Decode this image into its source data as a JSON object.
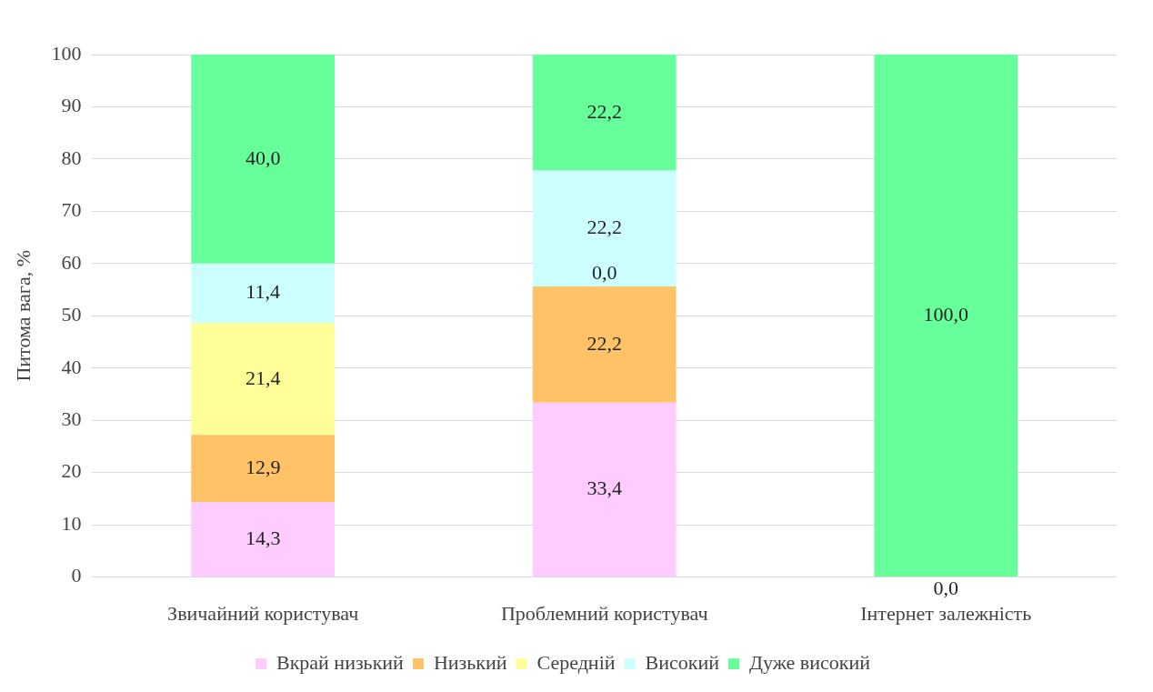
{
  "chart_data": {
    "type": "bar",
    "stacked": true,
    "ylabel": "Питома вага, %",
    "categories": [
      "Звичайний користувач",
      "Проблемний користувач",
      "Інтернет залежність"
    ],
    "series": [
      {
        "name": "Вкрай низький",
        "color": "#ffccff",
        "values": [
          14.3,
          33.4,
          0.0
        ],
        "value_labels": [
          "14,3",
          "33,4",
          null
        ]
      },
      {
        "name": "Низький",
        "color": "#ffc266",
        "values": [
          12.9,
          22.2,
          null
        ],
        "value_labels": [
          "12,9",
          "22,2",
          null
        ]
      },
      {
        "name": "Середній",
        "color": "#ffff99",
        "values": [
          21.4,
          0.0,
          null
        ],
        "value_labels": [
          "21,4",
          null,
          null
        ]
      },
      {
        "name": "Високий",
        "color": "#ccffff",
        "values": [
          11.4,
          22.2,
          null
        ],
        "value_labels": [
          "11,4",
          "22,2",
          null
        ]
      },
      {
        "name": "Дуже високий",
        "color": "#66ff99",
        "values": [
          40.0,
          22.2,
          100.0
        ],
        "value_labels": [
          "40,0",
          "22,2",
          "100,0"
        ]
      }
    ],
    "annotations": [
      {
        "text": "0,0",
        "x": "Проблемний користувач",
        "y": 55.6
      },
      {
        "text": "0,0",
        "x": "Інтернет залежність",
        "y": 0
      }
    ],
    "ylim": [
      0,
      100
    ],
    "yticks": [
      0,
      10,
      20,
      30,
      40,
      50,
      60,
      70,
      80,
      90,
      100
    ],
    "grid": "y",
    "legend": "bottom"
  }
}
